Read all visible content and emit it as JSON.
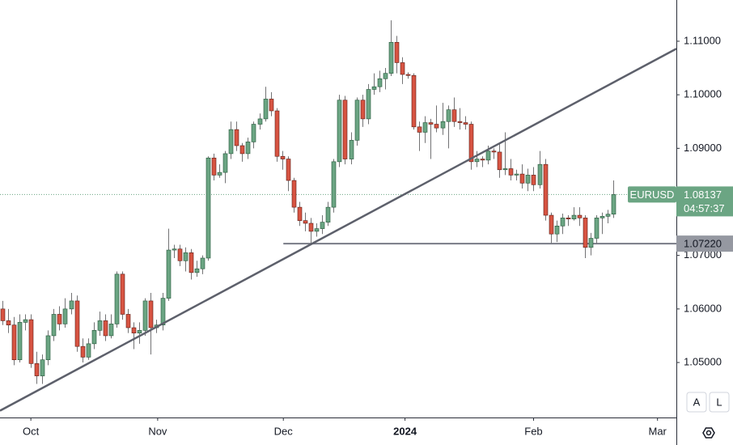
{
  "chart_data": {
    "type": "candlestick",
    "symbol": "EURUSD",
    "countdown": "04:57:37",
    "up_color": "#6ba583",
    "down_color": "#d75442",
    "wick_color": "#737375",
    "xlim": [
      -0.4,
      118
    ],
    "ylim": [
      1.03973,
      1.1177
    ],
    "xticks": [
      {
        "value": 5,
        "label": "Oct"
      },
      {
        "value": 27.2,
        "label": "Nov"
      },
      {
        "value": 49.2,
        "label": "Dec"
      },
      {
        "value": 70.5,
        "label": "2024"
      },
      {
        "value": 93,
        "label": "Feb"
      },
      {
        "value": 114.7,
        "label": "Mar"
      }
    ],
    "yticks": [
      {
        "value": 1.05,
        "label": "1.05000"
      },
      {
        "value": 1.06,
        "label": "1.06000"
      },
      {
        "value": 1.07,
        "label": "1.07000"
      },
      {
        "value": 1.09,
        "label": "1.09000"
      },
      {
        "value": 1.1,
        "label": "1.10000"
      },
      {
        "value": 1.11,
        "label": "1.11000"
      }
    ],
    "trendline": {
      "x": [
        -0.4,
        118
      ],
      "y": [
        1.041,
        1.1086
      ]
    },
    "hline": {
      "value": 1.0722,
      "label": "1.07220",
      "x_start": 49.2
    },
    "buttons": [
      "A",
      "L"
    ],
    "open": [
      1.06,
      1.0578,
      1.057,
      1.0505,
      1.0575,
      1.058,
      1.0498,
      1.0475,
      1.0505,
      1.055,
      1.059,
      1.0572,
      1.06,
      1.0615,
      1.053,
      1.051,
      1.0535,
      1.056,
      1.0578,
      1.055,
      1.0572,
      1.0665,
      1.059,
      1.0565,
      1.0555,
      1.056,
      1.0615,
      1.0565,
      1.057,
      1.062,
      1.071,
      1.0712,
      1.069,
      1.0705,
      1.0668,
      1.0675,
      1.0695,
      1.0882,
      1.085,
      1.0855,
      1.089,
      1.0935,
      1.0905,
      1.089,
      1.0912,
      1.0945,
      1.0955,
      1.0992,
      1.097,
      1.0885,
      1.088,
      1.084,
      1.079,
      1.0765,
      1.076,
      1.0745,
      1.075,
      1.0762,
      1.079,
      1.0875,
      1.099,
      1.088,
      1.0915,
      1.099,
      1.0955,
      1.101,
      1.1015,
      1.103,
      1.104,
      1.1098,
      1.106,
      1.1038,
      1.1036,
      1.094,
      1.093,
      1.0948,
      1.0945,
      1.0938,
      1.095,
      1.0972,
      1.095,
      1.0948,
      1.0945,
      1.0875,
      1.088,
      1.0878,
      1.0895,
      1.0893,
      1.086,
      1.0862,
      1.085,
      1.0852,
      1.0835,
      1.085,
      1.0832,
      1.087,
      1.0775,
      1.074,
      1.0755,
      1.077,
      1.0768,
      1.0775,
      1.077,
      1.0715,
      1.0732,
      1.077,
      1.0773,
      1.0777
    ],
    "high": [
      1.0615,
      1.06,
      1.0585,
      1.059,
      1.059,
      1.059,
      1.052,
      1.0515,
      1.056,
      1.06,
      1.0605,
      1.062,
      1.063,
      1.0625,
      1.0545,
      1.0545,
      1.0575,
      1.0595,
      1.059,
      1.059,
      1.067,
      1.067,
      1.06,
      1.0575,
      1.0575,
      1.062,
      1.063,
      1.058,
      1.063,
      1.075,
      1.072,
      1.072,
      1.0715,
      1.0712,
      1.069,
      1.07,
      1.0885,
      1.089,
      1.087,
      1.0895,
      1.095,
      1.095,
      1.091,
      1.092,
      1.095,
      1.0965,
      1.1015,
      1.1005,
      1.0975,
      1.0895,
      1.0885,
      1.0845,
      1.08,
      1.078,
      1.077,
      1.076,
      1.0775,
      1.08,
      1.088,
      1.1,
      1.0998,
      1.093,
      1.0995,
      1.1,
      1.102,
      1.104,
      1.1045,
      1.105,
      1.1139,
      1.111,
      1.107,
      1.1042,
      1.104,
      1.095,
      1.096,
      1.0955,
      1.098,
      1.0985,
      1.098,
      1.0995,
      1.0975,
      1.096,
      1.095,
      1.0895,
      1.0885,
      1.0905,
      1.09,
      1.091,
      1.093,
      1.088,
      1.086,
      1.087,
      1.0862,
      1.0865,
      1.0895,
      1.088,
      1.078,
      1.0765,
      1.0778,
      1.0775,
      1.079,
      1.079,
      1.0775,
      1.0742,
      1.0775,
      1.078,
      1.0785,
      1.084
    ],
    "low": [
      1.057,
      1.0555,
      1.0495,
      1.05,
      1.056,
      1.049,
      1.046,
      1.046,
      1.0495,
      1.054,
      1.056,
      1.0565,
      1.059,
      1.052,
      1.05,
      1.0505,
      1.0525,
      1.055,
      1.054,
      1.0545,
      1.0565,
      1.058,
      1.0555,
      1.0525,
      1.0535,
      1.055,
      1.0515,
      1.0555,
      1.056,
      1.0615,
      1.0695,
      1.068,
      1.067,
      1.0655,
      1.066,
      1.0665,
      1.069,
      1.084,
      1.0845,
      1.0835,
      1.088,
      1.0895,
      1.0875,
      1.088,
      1.09,
      1.0935,
      1.095,
      1.096,
      1.0875,
      1.086,
      1.082,
      1.078,
      1.0755,
      1.0745,
      1.0723,
      1.0735,
      1.074,
      1.0755,
      1.078,
      1.0865,
      1.087,
      1.087,
      1.0905,
      1.094,
      1.0945,
      1.1,
      1.1005,
      1.101,
      1.1035,
      1.104,
      1.102,
      1.103,
      1.0935,
      1.0895,
      1.091,
      1.088,
      1.093,
      1.0925,
      1.09,
      1.094,
      1.0935,
      1.0935,
      1.086,
      1.0865,
      1.0865,
      1.087,
      1.088,
      1.0845,
      1.085,
      1.084,
      1.084,
      1.0825,
      1.082,
      1.082,
      1.0825,
      1.0765,
      1.0723,
      1.0725,
      1.074,
      1.0755,
      1.0765,
      1.0755,
      1.0695,
      1.07,
      1.0722,
      1.074,
      1.076,
      1.077
    ],
    "close": [
      1.0578,
      1.057,
      1.0505,
      1.0575,
      1.058,
      1.0498,
      1.0475,
      1.0505,
      1.055,
      1.059,
      1.0572,
      1.06,
      1.0615,
      1.053,
      1.051,
      1.0535,
      1.056,
      1.0578,
      1.055,
      1.0572,
      1.0665,
      1.059,
      1.0565,
      1.0555,
      1.056,
      1.0615,
      1.0565,
      1.057,
      1.062,
      1.071,
      1.0712,
      1.069,
      1.0705,
      1.0668,
      1.0675,
      1.0695,
      1.0882,
      1.085,
      1.0855,
      1.089,
      1.0935,
      1.0905,
      1.089,
      1.0912,
      1.0945,
      1.0955,
      1.0992,
      1.097,
      1.0885,
      1.088,
      1.084,
      1.079,
      1.0765,
      1.076,
      1.0745,
      1.075,
      1.0762,
      1.079,
      1.0875,
      1.099,
      1.088,
      1.0915,
      1.099,
      1.0955,
      1.101,
      1.1015,
      1.103,
      1.104,
      1.1098,
      1.106,
      1.1038,
      1.1036,
      1.094,
      1.093,
      1.0948,
      1.0945,
      1.0938,
      1.095,
      1.0972,
      1.095,
      1.0948,
      1.0945,
      1.0875,
      1.088,
      1.0878,
      1.0895,
      1.0893,
      1.086,
      1.0862,
      1.085,
      1.0852,
      1.0835,
      1.085,
      1.0832,
      1.087,
      1.0775,
      1.074,
      1.0755,
      1.077,
      1.0768,
      1.0775,
      1.077,
      1.0715,
      1.0732,
      1.077,
      1.0773,
      1.0777,
      1.08137
    ]
  }
}
